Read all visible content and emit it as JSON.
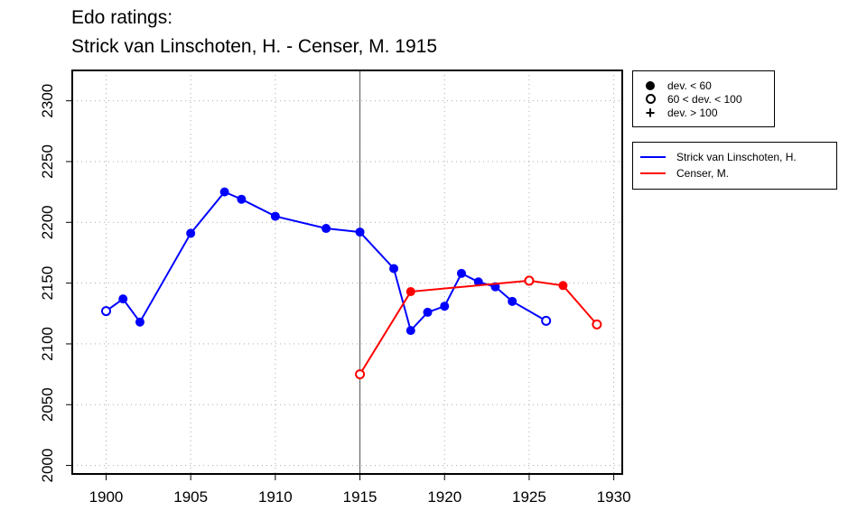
{
  "chart_data": {
    "type": "line",
    "title": "Edo ratings:",
    "subtitle": "Strick van Linschoten, H. - Censer, M. 1915",
    "xlabel": "",
    "ylabel": "",
    "xlim": [
      1898,
      1930.5
    ],
    "ylim": [
      1993,
      2325
    ],
    "xticks": [
      1900,
      1905,
      1910,
      1915,
      1920,
      1925,
      1930
    ],
    "yticks": [
      2000,
      2050,
      2100,
      2150,
      2200,
      2250,
      2300
    ],
    "grid": true,
    "vline_x": 1915,
    "deviation_legend": {
      "position": "top-right",
      "entries": [
        {
          "symbol": "filled",
          "label": "dev. < 60"
        },
        {
          "symbol": "open",
          "label": "60 < dev. < 100"
        },
        {
          "symbol": "plus",
          "label": "dev. > 100"
        }
      ]
    },
    "series": [
      {
        "name": "Strick van Linschoten, H.",
        "color": "#0000ff",
        "points": [
          {
            "x": 1900,
            "y": 2127,
            "dev": "open"
          },
          {
            "x": 1901,
            "y": 2137,
            "dev": "filled"
          },
          {
            "x": 1902,
            "y": 2118,
            "dev": "filled"
          },
          {
            "x": 1905,
            "y": 2191,
            "dev": "filled"
          },
          {
            "x": 1907,
            "y": 2225,
            "dev": "filled"
          },
          {
            "x": 1908,
            "y": 2219,
            "dev": "filled"
          },
          {
            "x": 1910,
            "y": 2205,
            "dev": "filled"
          },
          {
            "x": 1913,
            "y": 2195,
            "dev": "filled"
          },
          {
            "x": 1915,
            "y": 2192,
            "dev": "filled"
          },
          {
            "x": 1917,
            "y": 2162,
            "dev": "filled"
          },
          {
            "x": 1918,
            "y": 2111,
            "dev": "filled"
          },
          {
            "x": 1919,
            "y": 2126,
            "dev": "filled"
          },
          {
            "x": 1920,
            "y": 2131,
            "dev": "filled"
          },
          {
            "x": 1921,
            "y": 2158,
            "dev": "filled"
          },
          {
            "x": 1922,
            "y": 2151,
            "dev": "filled"
          },
          {
            "x": 1923,
            "y": 2147,
            "dev": "filled"
          },
          {
            "x": 1924,
            "y": 2135,
            "dev": "filled"
          },
          {
            "x": 1926,
            "y": 2119,
            "dev": "open"
          }
        ]
      },
      {
        "name": "Censer, M.",
        "color": "#ff0000",
        "points": [
          {
            "x": 1915,
            "y": 2075,
            "dev": "open"
          },
          {
            "x": 1918,
            "y": 2143,
            "dev": "filled"
          },
          {
            "x": 1925,
            "y": 2152,
            "dev": "open"
          },
          {
            "x": 1927,
            "y": 2148,
            "dev": "filled"
          },
          {
            "x": 1929,
            "y": 2116,
            "dev": "open"
          }
        ]
      }
    ]
  }
}
